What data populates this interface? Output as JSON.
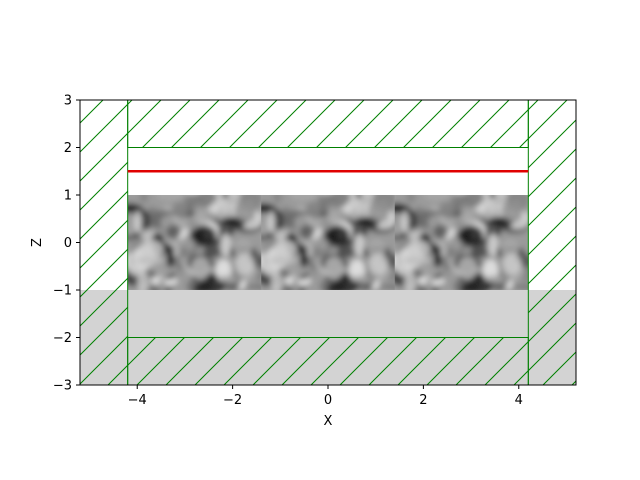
{
  "chart_data": {
    "type": "heatmap",
    "title": "",
    "xlabel": "X",
    "ylabel": "Z",
    "xlim": [
      -5.2,
      5.2
    ],
    "ylim": [
      -3,
      3
    ],
    "x_ticks": [
      -4,
      -2,
      0,
      2,
      4
    ],
    "y_ticks": [
      -3,
      -2,
      -1,
      0,
      1,
      2,
      3
    ],
    "x_tick_labels": [
      "−4",
      "−2",
      "0",
      "2",
      "4"
    ],
    "y_tick_labels": [
      "−3",
      "−2",
      "−1",
      "0",
      "1",
      "2",
      "3"
    ],
    "grid": false,
    "regions": {
      "substrate": {
        "x": [
          -5.2,
          5.2
        ],
        "z": [
          -3,
          -1
        ],
        "color": "#d3d3d3"
      },
      "textured_layer": {
        "x": [
          -4.2,
          4.2
        ],
        "z": [
          -1,
          1
        ],
        "tiles": 3,
        "colormap": "gray"
      },
      "source_line": {
        "x": [
          -4.2,
          4.2
        ],
        "z": 1.5,
        "color": "#e00000"
      },
      "pml_boundaries": [
        {
          "x": [
            -5.2,
            -4.2
          ],
          "z": [
            -3,
            3
          ]
        },
        {
          "x": [
            4.2,
            5.2
          ],
          "z": [
            -3,
            3
          ]
        },
        {
          "x": [
            -4.2,
            4.2
          ],
          "z": [
            2,
            3
          ]
        },
        {
          "x": [
            -4.2,
            4.2
          ],
          "z": [
            -3,
            -2
          ]
        }
      ],
      "boundary_color": "#008000"
    }
  }
}
